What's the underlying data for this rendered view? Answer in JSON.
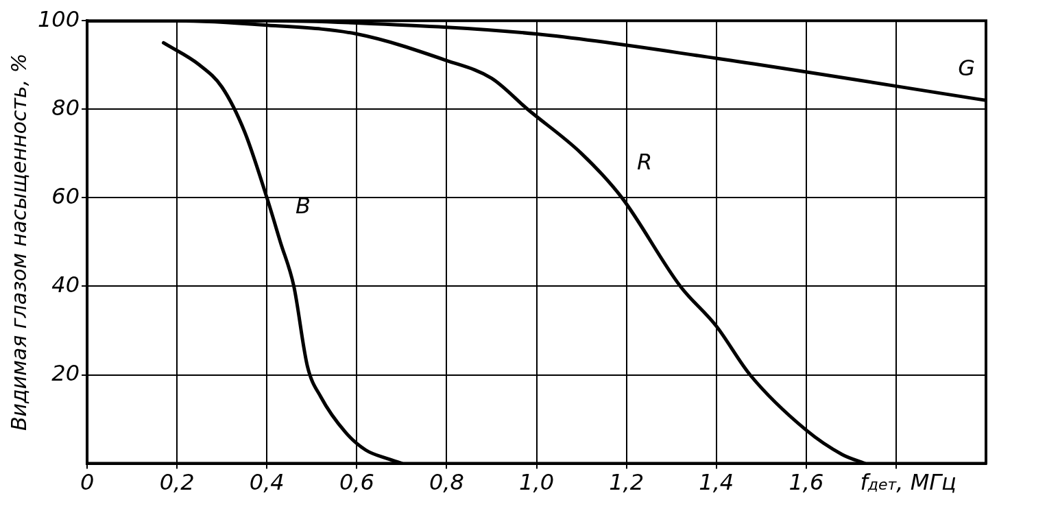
{
  "chart_data": {
    "type": "line",
    "xlabel": "f$_{дет}$, МГц",
    "ylabel": "Видимая глазом насыщенность, %",
    "xlim": [
      0,
      2.0
    ],
    "ylim": [
      0,
      100
    ],
    "xticks": [
      0,
      {
        "value": 0.2,
        "label": "0,2"
      },
      {
        "value": 0.4,
        "label": "0,4"
      },
      {
        "value": 0.6,
        "label": "0,6"
      },
      {
        "value": 0.8,
        "label": "0,8"
      },
      {
        "value": 1.0,
        "label": "1,0"
      },
      {
        "value": 1.2,
        "label": "1,2"
      },
      {
        "value": 1.4,
        "label": "1,4"
      },
      {
        "value": 1.6,
        "label": "1,6"
      },
      {
        "value": 1.8,
        "label": null
      }
    ],
    "yticks": [
      20,
      40,
      60,
      80,
      100
    ],
    "grid": true,
    "legend": false,
    "marker": "none",
    "line_style": "solid",
    "series": [
      {
        "name": "B",
        "color": "#000000",
        "x": [
          0.17,
          0.25,
          0.3,
          0.35,
          0.4,
          0.43,
          0.46,
          0.49,
          0.52,
          0.575,
          0.62,
          0.67,
          0.7
        ],
        "values": [
          95,
          90,
          85,
          75,
          60,
          50,
          40,
          22,
          15,
          7,
          3,
          1,
          0
        ]
      },
      {
        "name": "R",
        "color": "#000000",
        "x": [
          0,
          0.2,
          0.4,
          0.6,
          0.8,
          0.9,
          0.98,
          1.1,
          1.19,
          1.32,
          1.4,
          1.475,
          1.6,
          1.68,
          1.73
        ],
        "values": [
          100,
          100,
          99,
          97,
          91,
          87,
          80,
          70,
          60,
          40,
          31,
          20,
          7.5,
          2,
          0
        ]
      },
      {
        "name": "G",
        "color": "#000000",
        "x": [
          0,
          0.4,
          0.6,
          1.0,
          1.4,
          2.0
        ],
        "values": [
          100,
          100,
          99.5,
          97,
          91.5,
          82
        ]
      }
    ]
  }
}
